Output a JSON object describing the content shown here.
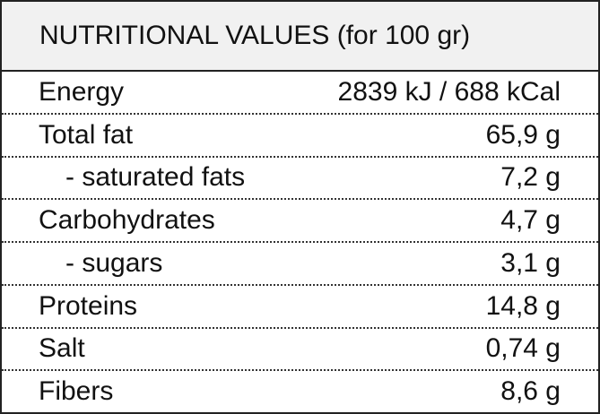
{
  "table": {
    "title": "NUTRITIONAL VALUES (for 100 gr)",
    "rows": [
      [
        "Energy",
        "2839 kJ / 688 kCal"
      ],
      [
        "Total fat",
        "65,9 g"
      ],
      [
        "- saturated fats",
        "7,2 g"
      ],
      [
        "Carbohydrates",
        "4,7 g"
      ],
      [
        "- sugars",
        "3,1 g"
      ],
      [
        "Proteins",
        "14,8 g"
      ],
      [
        "Salt",
        "0,74 g"
      ],
      [
        "Fibers",
        "8,6 g"
      ]
    ]
  }
}
